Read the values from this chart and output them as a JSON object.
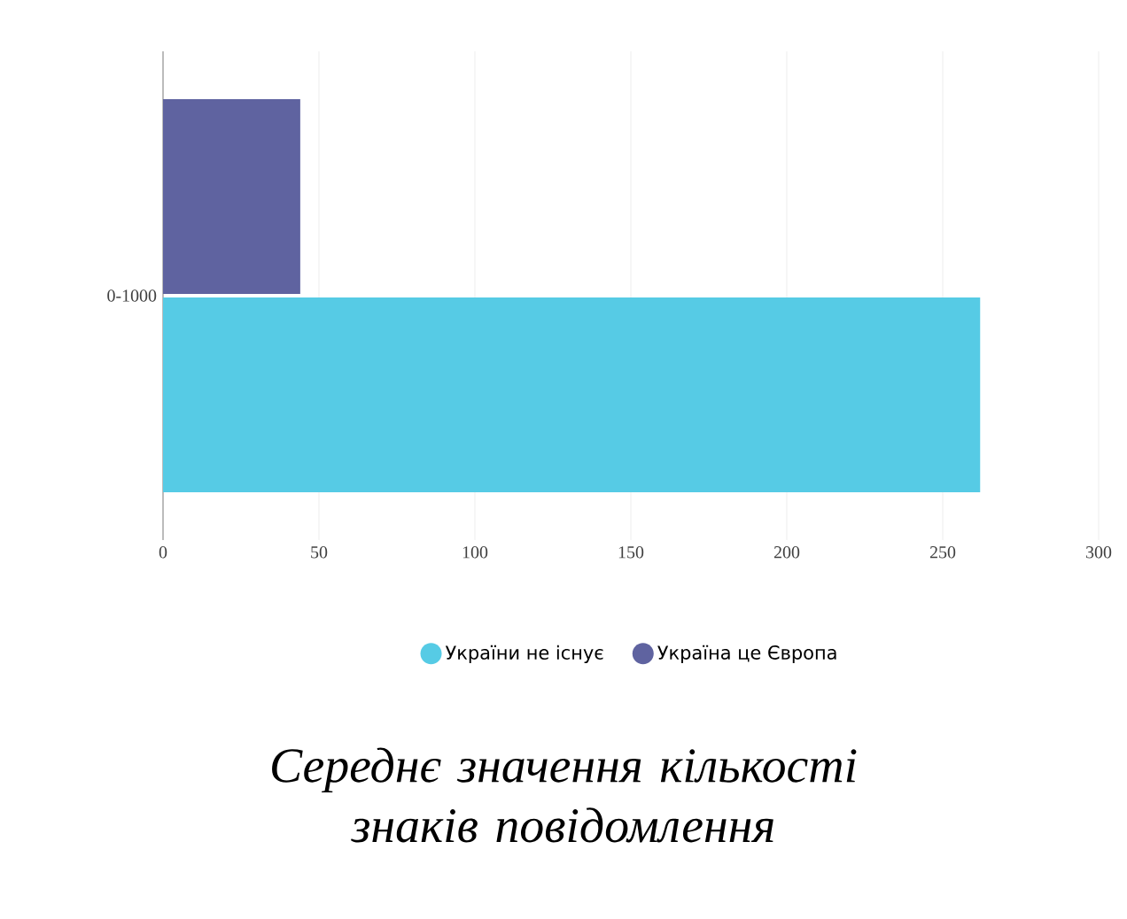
{
  "chart_data": {
    "type": "bar",
    "orientation": "horizontal",
    "title": "Середнє значення кількості знаків повідомлення",
    "categories": [
      "0-1000"
    ],
    "series": [
      {
        "name": "України не існує",
        "color": "#56cbe5",
        "values": [
          262
        ]
      },
      {
        "name": "Україна це Європа",
        "color": "#5f63a0",
        "values": [
          44
        ]
      }
    ],
    "xlim": [
      0,
      300
    ],
    "xticks": [
      0,
      50,
      100,
      150,
      200,
      250,
      300
    ],
    "grid": "x",
    "legend": "bottom"
  }
}
